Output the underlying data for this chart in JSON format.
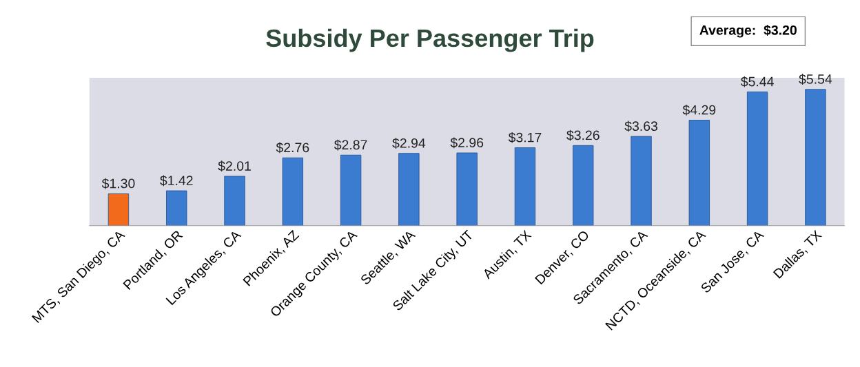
{
  "chart_data": {
    "type": "bar",
    "title": "Subsidy Per Passenger Trip",
    "categories": [
      "MTS, San Diego, CA",
      "Portland, OR",
      "Los Angeles, CA",
      "Phoenix, AZ",
      "Orange County, CA",
      "Seattle, WA",
      "Salt Lake City, UT",
      "Austin, TX",
      "Denver, CO",
      "Sacramento, CA",
      "NCTD, Oceanside, CA",
      "San Jose, CA",
      "Dallas, TX"
    ],
    "values": [
      1.3,
      1.42,
      2.01,
      2.76,
      2.87,
      2.94,
      2.96,
      3.17,
      3.26,
      3.63,
      4.29,
      5.44,
      5.54
    ],
    "value_labels": [
      "$1.30",
      "$1.42",
      "$2.01",
      "$2.76",
      "$2.87",
      "$2.94",
      "$2.96",
      "$3.17",
      "$3.26",
      "$3.63",
      "$4.29",
      "$5.44",
      "$5.54"
    ],
    "colors": [
      "#f26b1d",
      "#3b7bd0",
      "#3b7bd0",
      "#3b7bd0",
      "#3b7bd0",
      "#3b7bd0",
      "#3b7bd0",
      "#3b7bd0",
      "#3b7bd0",
      "#3b7bd0",
      "#3b7bd0",
      "#3b7bd0",
      "#3b7bd0"
    ],
    "annotations": [
      "Average:  $3.20"
    ],
    "grid": false,
    "legend": false
  }
}
